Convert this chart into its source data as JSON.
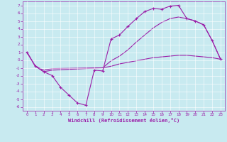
{
  "xlabel": "Windchill (Refroidissement éolien,°C)",
  "background_color": "#c8eaf0",
  "line_color": "#9b1fa8",
  "xlim": [
    -0.5,
    23.5
  ],
  "ylim": [
    -6.5,
    7.5
  ],
  "xticks": [
    0,
    1,
    2,
    3,
    4,
    5,
    6,
    7,
    8,
    9,
    10,
    11,
    12,
    13,
    14,
    15,
    16,
    17,
    18,
    19,
    20,
    21,
    22,
    23
  ],
  "yticks": [
    -6,
    -5,
    -4,
    -3,
    -2,
    -1,
    0,
    1,
    2,
    3,
    4,
    5,
    6,
    7
  ],
  "series1": [
    [
      0,
      1.0
    ],
    [
      1,
      -0.8
    ],
    [
      2,
      -1.5
    ],
    [
      3,
      -2.0
    ],
    [
      4,
      -3.5
    ],
    [
      5,
      -4.5
    ],
    [
      6,
      -5.5
    ],
    [
      7,
      -5.8
    ],
    [
      8,
      -1.3
    ],
    [
      9,
      -1.4
    ],
    [
      10,
      2.7
    ],
    [
      11,
      3.2
    ],
    [
      12,
      4.3
    ],
    [
      13,
      5.3
    ],
    [
      14,
      6.2
    ],
    [
      15,
      6.6
    ],
    [
      16,
      6.5
    ],
    [
      17,
      6.9
    ],
    [
      18,
      7.0
    ],
    [
      19,
      5.3
    ],
    [
      20,
      5.0
    ],
    [
      21,
      4.5
    ],
    [
      22,
      2.5
    ],
    [
      23,
      0.1
    ]
  ],
  "series2": [
    [
      0,
      1.0
    ],
    [
      1,
      -0.8
    ],
    [
      2,
      -1.5
    ],
    [
      3,
      -1.3
    ],
    [
      9,
      -1.0
    ],
    [
      10,
      -0.1
    ],
    [
      11,
      0.5
    ],
    [
      12,
      1.3
    ],
    [
      13,
      2.3
    ],
    [
      14,
      3.2
    ],
    [
      15,
      4.1
    ],
    [
      16,
      4.8
    ],
    [
      17,
      5.3
    ],
    [
      18,
      5.5
    ],
    [
      19,
      5.3
    ],
    [
      20,
      5.0
    ],
    [
      21,
      4.5
    ],
    [
      22,
      2.5
    ],
    [
      23,
      0.1
    ]
  ],
  "series3": [
    [
      0,
      1.0
    ],
    [
      1,
      -0.8
    ],
    [
      2,
      -1.3
    ],
    [
      3,
      -1.1
    ],
    [
      9,
      -1.0
    ],
    [
      10,
      -0.8
    ],
    [
      11,
      -0.5
    ],
    [
      12,
      -0.3
    ],
    [
      13,
      -0.1
    ],
    [
      14,
      0.1
    ],
    [
      15,
      0.3
    ],
    [
      16,
      0.4
    ],
    [
      17,
      0.5
    ],
    [
      18,
      0.6
    ],
    [
      19,
      0.6
    ],
    [
      20,
      0.5
    ],
    [
      21,
      0.4
    ],
    [
      22,
      0.3
    ],
    [
      23,
      0.1
    ]
  ]
}
